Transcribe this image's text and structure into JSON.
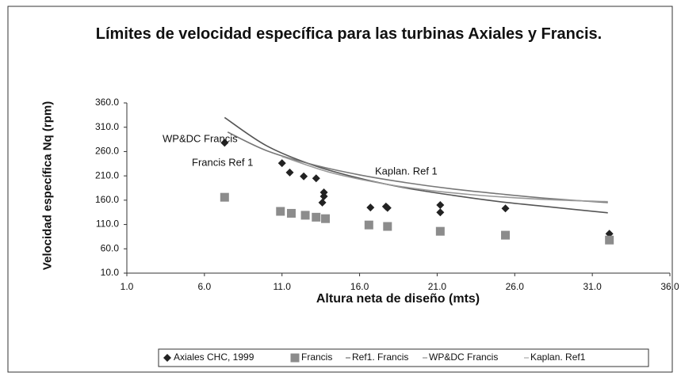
{
  "chart_data": {
    "type": "scatter",
    "title": "Límites de velocidad específica para las turbinas Axiales y Francis.",
    "x_label": "Altura neta de diseño (mts)",
    "y_label": "Velocidad específica Nq (rpm)",
    "xlim": [
      1,
      36
    ],
    "ylim": [
      10,
      360
    ],
    "xticks": [
      {
        "value": 1,
        "label": "1.0"
      },
      {
        "value": 6,
        "label": "6.0"
      },
      {
        "value": 11,
        "label": "11.0"
      },
      {
        "value": 16,
        "label": "16.0"
      },
      {
        "value": 21,
        "label": "21.0"
      },
      {
        "value": 26,
        "label": "26.0"
      },
      {
        "value": 31,
        "label": "31.0"
      },
      {
        "value": 36,
        "label": "36.0"
      }
    ],
    "yticks": [
      {
        "value": 10,
        "label": "10.0"
      },
      {
        "value": 60,
        "label": "60.0"
      },
      {
        "value": 110,
        "label": "110.0"
      },
      {
        "value": 160,
        "label": "160.0"
      },
      {
        "value": 210,
        "label": "210.0"
      },
      {
        "value": 260,
        "label": "260.0"
      },
      {
        "value": 310,
        "label": "310.0"
      },
      {
        "value": 360,
        "label": "360.0"
      }
    ],
    "grid": false,
    "legend": "bottom",
    "series": [
      {
        "name": "Axiales CHC, 1999",
        "color": "#222222",
        "marker": "diamond",
        "x": [
          7.3,
          11.0,
          11.5,
          12.4,
          13.2,
          13.7,
          13.7,
          13.6,
          16.7,
          17.7,
          17.8,
          21.2,
          21.2,
          25.4,
          32.1
        ],
        "values": [
          278,
          236,
          217,
          209,
          205,
          176,
          168,
          155,
          145,
          147,
          144,
          150,
          135,
          143,
          91
        ]
      },
      {
        "name": "Francis",
        "color": "#8c8c8c",
        "marker": "square",
        "x": [
          7.3,
          10.9,
          11.6,
          12.5,
          13.2,
          13.8,
          16.6,
          17.8,
          21.2,
          25.4,
          32.1
        ],
        "values": [
          166,
          137,
          133,
          129,
          125,
          122,
          109,
          106,
          96,
          88,
          78
        ]
      },
      {
        "name": "Ref1. Francis",
        "color": "#555555",
        "marker": "line",
        "x": [
          7.3,
          10,
          13,
          16,
          19,
          22,
          25,
          28,
          32
        ],
        "values": [
          330,
          272,
          232,
          205,
          185,
          170,
          157,
          147,
          134
        ]
      },
      {
        "name": "WP&DC Francis",
        "color": "#777777",
        "marker": "line",
        "x": [
          7.5,
          10,
          13,
          16,
          19,
          22,
          25,
          28,
          32
        ],
        "values": [
          300,
          262,
          233,
          212,
          196,
          183,
          173,
          164,
          155
        ]
      },
      {
        "name": "Kaplan. Ref1",
        "color": "#999999",
        "marker": "line",
        "x": [
          11,
          14,
          17,
          20,
          23,
          26,
          29,
          32
        ],
        "values": [
          250,
          218,
          197,
          182,
          172,
          165,
          160,
          157
        ]
      }
    ],
    "annotations": [
      "WP&DC Francis",
      "Francis Ref 1",
      "Kaplan. Ref 1"
    ]
  }
}
